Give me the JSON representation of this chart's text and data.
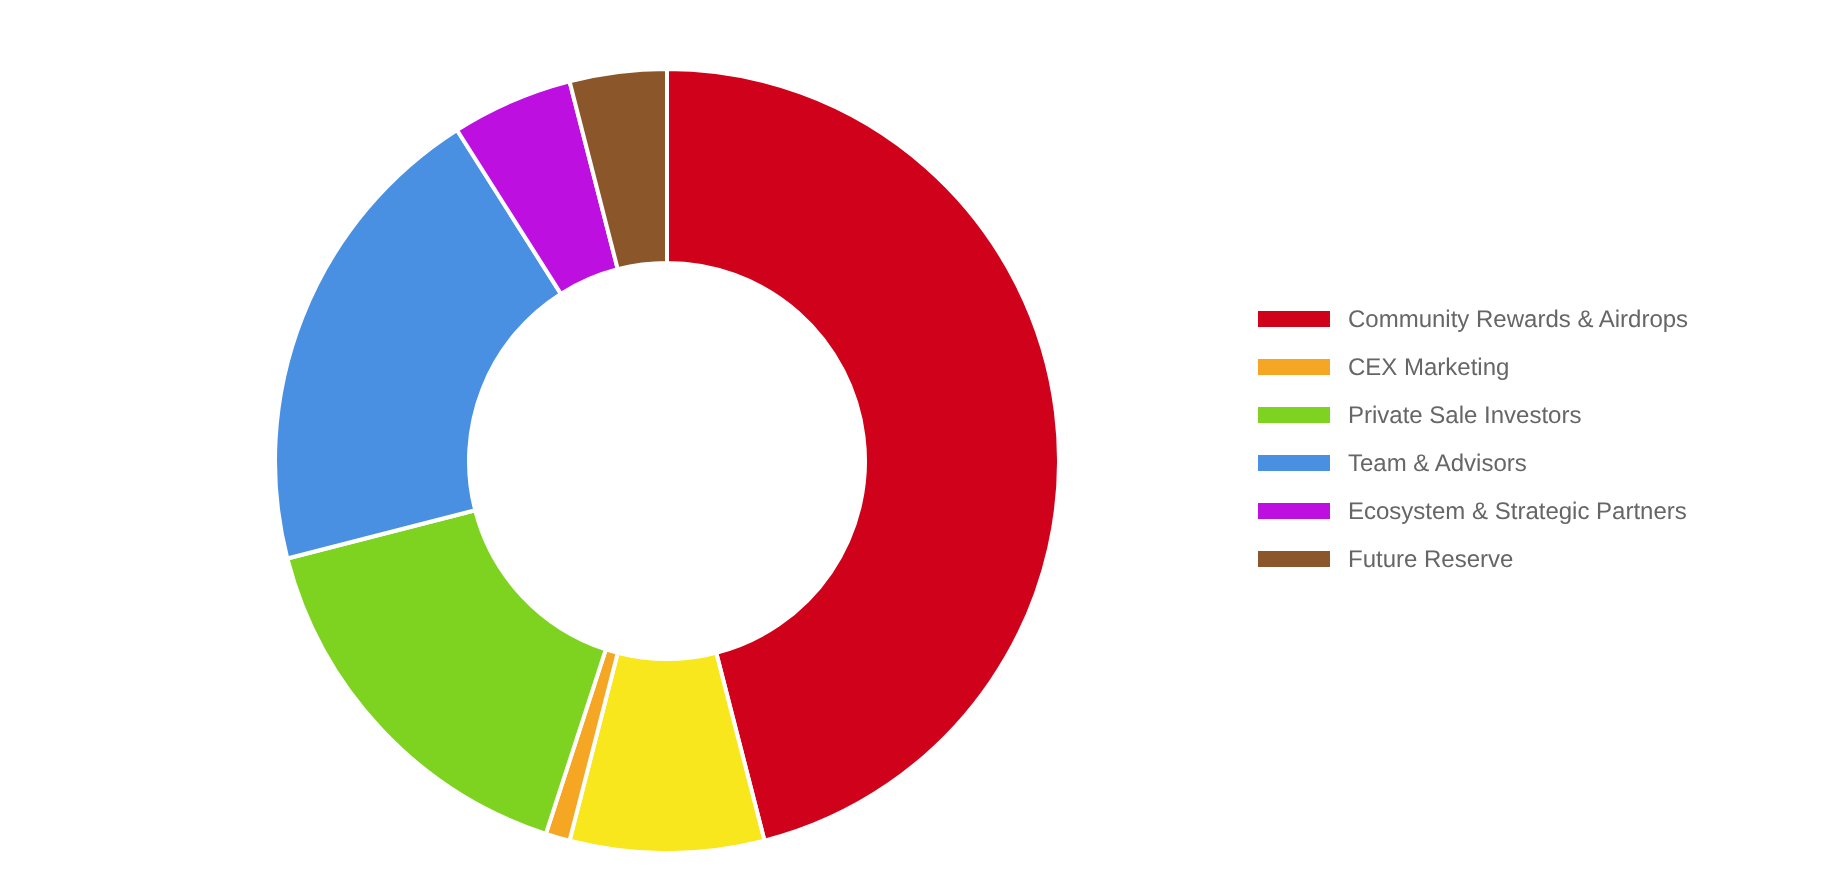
{
  "chart_data": {
    "type": "donut",
    "categories": [
      "Community Rewards & Airdrops",
      null,
      "CEX Marketing",
      "Private Sale Investors",
      "Team & Advisors",
      "Ecosystem & Strategic Partners",
      "Future Reserve"
    ],
    "values": [
      46,
      8,
      1,
      16,
      20,
      5,
      4
    ],
    "colors": [
      "#d0021b",
      "#f8e71c",
      "#f5a623",
      "#7ed321",
      "#4a90e2",
      "#bd10e0",
      "#8b572a"
    ],
    "legend": "right"
  }
}
